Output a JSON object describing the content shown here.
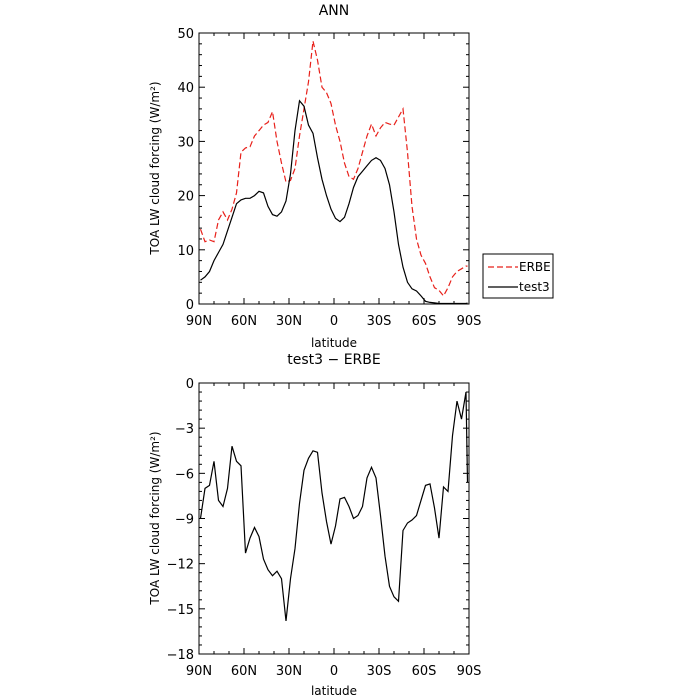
{
  "chart_data": [
    {
      "type": "line",
      "title": "ANN",
      "xlabel": "latitude",
      "ylabel": "TOA LW cloud forcing (W/m²)",
      "xlim": [
        90,
        -90
      ],
      "ylim": [
        0,
        50
      ],
      "x_ticks": [
        "90N",
        "60N",
        "30N",
        "0",
        "30S",
        "60S",
        "90S"
      ],
      "x_tick_values": [
        90,
        60,
        30,
        0,
        -30,
        -60,
        -90
      ],
      "y_ticks": [
        "0",
        "10",
        "20",
        "30",
        "40",
        "50"
      ],
      "y_tick_values": [
        0,
        10,
        20,
        30,
        40,
        50
      ],
      "grid": false,
      "legend": "right",
      "x": [
        89,
        86,
        83,
        80,
        77,
        74,
        71,
        68,
        65,
        62,
        59,
        56,
        53,
        50,
        47,
        44,
        41,
        38,
        35,
        32,
        29,
        26,
        23,
        20,
        17,
        14,
        11,
        8,
        5,
        2,
        -1,
        -4,
        -7,
        -10,
        -13,
        -16,
        -19,
        -22,
        -25,
        -28,
        -31,
        -34,
        -37,
        -40,
        -43,
        -46,
        -49,
        -52,
        -55,
        -58,
        -61,
        -64,
        -67,
        -70,
        -73,
        -76,
        -79,
        -82,
        -85,
        -88,
        -89
      ],
      "series": [
        {
          "name": "ERBE",
          "color": "#e8211b",
          "dash": "dashed",
          "values": [
            13.8,
            11.5,
            11.8,
            11.5,
            15.5,
            17.0,
            15.5,
            17.5,
            20.5,
            28.0,
            28.8,
            29.0,
            31.0,
            32.0,
            33.0,
            33.5,
            35.5,
            30.0,
            26.0,
            22.5,
            22.8,
            25.0,
            31.0,
            36.0,
            41.0,
            48.5,
            45.0,
            40.0,
            39.0,
            37.0,
            33.0,
            30.0,
            26.0,
            23.5,
            23.0,
            25.0,
            28.0,
            31.0,
            33.2,
            31.0,
            32.5,
            33.5,
            33.2,
            33.0,
            34.5,
            36.0,
            28.0,
            18.0,
            12.0,
            9.0,
            7.5,
            5.0,
            3.0,
            2.5,
            1.5,
            3.0,
            5.0,
            6.0,
            6.5,
            7.0,
            7.0
          ]
        },
        {
          "name": "test3",
          "color": "#000000",
          "dash": "solid",
          "values": [
            4.4,
            5.0,
            6.0,
            8.0,
            9.5,
            11.0,
            13.5,
            16.0,
            18.5,
            19.2,
            19.5,
            19.5,
            20.0,
            20.8,
            20.5,
            18.0,
            16.5,
            16.2,
            17.0,
            19.0,
            24.0,
            32.0,
            37.5,
            36.5,
            33.0,
            31.5,
            27.0,
            23.0,
            20.0,
            17.5,
            15.8,
            15.2,
            16.0,
            18.5,
            21.5,
            23.5,
            24.5,
            25.5,
            26.5,
            27.0,
            26.5,
            25.0,
            22.0,
            17.0,
            11.0,
            6.8,
            4.0,
            2.8,
            2.4,
            1.5,
            0.5,
            0.3,
            0.2,
            0.1,
            0.1,
            0.1,
            0.1,
            0.1,
            0.1,
            0.1,
            0.2
          ]
        }
      ]
    },
    {
      "type": "line",
      "title": "test3 − ERBE",
      "xlabel": "latitude",
      "ylabel": "TOA LW cloud forcing (W/m²)",
      "xlim": [
        90,
        -90
      ],
      "ylim": [
        -18,
        0
      ],
      "x_ticks": [
        "90N",
        "60N",
        "30N",
        "0",
        "30S",
        "60S",
        "90S"
      ],
      "x_tick_values": [
        90,
        60,
        30,
        0,
        -30,
        -60,
        -90
      ],
      "y_ticks": [
        "0",
        "−3",
        "−6",
        "−9",
        "−12",
        "−15",
        "−18"
      ],
      "y_tick_values": [
        0,
        -3,
        -6,
        -9,
        -12,
        -15,
        -18
      ],
      "grid": false,
      "x": [
        89,
        86,
        83,
        80,
        77,
        74,
        71,
        68,
        65,
        62,
        59,
        56,
        53,
        50,
        47,
        44,
        41,
        38,
        35,
        32,
        29,
        26,
        23,
        20,
        17,
        14,
        11,
        8,
        5,
        2,
        -1,
        -4,
        -7,
        -10,
        -13,
        -16,
        -19,
        -22,
        -25,
        -28,
        -31,
        -34,
        -37,
        -40,
        -43,
        -46,
        -49,
        -52,
        -55,
        -58,
        -61,
        -64,
        -67,
        -70,
        -73,
        -76,
        -79,
        -82,
        -85,
        -88,
        -89
      ],
      "series": [
        {
          "color": "#000000",
          "dash": "solid",
          "values": [
            -9.0,
            -7.0,
            -6.8,
            -5.2,
            -7.8,
            -8.2,
            -7.0,
            -4.2,
            -5.2,
            -5.5,
            -11.3,
            -10.3,
            -9.6,
            -10.2,
            -11.7,
            -12.4,
            -12.8,
            -12.5,
            -13.0,
            -15.8,
            -13.0,
            -11.0,
            -8.0,
            -5.8,
            -5.0,
            -4.5,
            -4.6,
            -7.3,
            -9.2,
            -10.7,
            -9.5,
            -7.7,
            -7.6,
            -8.2,
            -9.0,
            -8.8,
            -8.2,
            -6.3,
            -5.6,
            -6.3,
            -8.8,
            -11.5,
            -13.5,
            -14.2,
            -14.5,
            -9.8,
            -9.3,
            -9.1,
            -8.8,
            -7.8,
            -6.8,
            -6.7,
            -8.3,
            -10.3,
            -6.9,
            -7.2,
            -3.5,
            -1.2,
            -2.4,
            -0.6,
            -6.6
          ]
        }
      ]
    }
  ]
}
